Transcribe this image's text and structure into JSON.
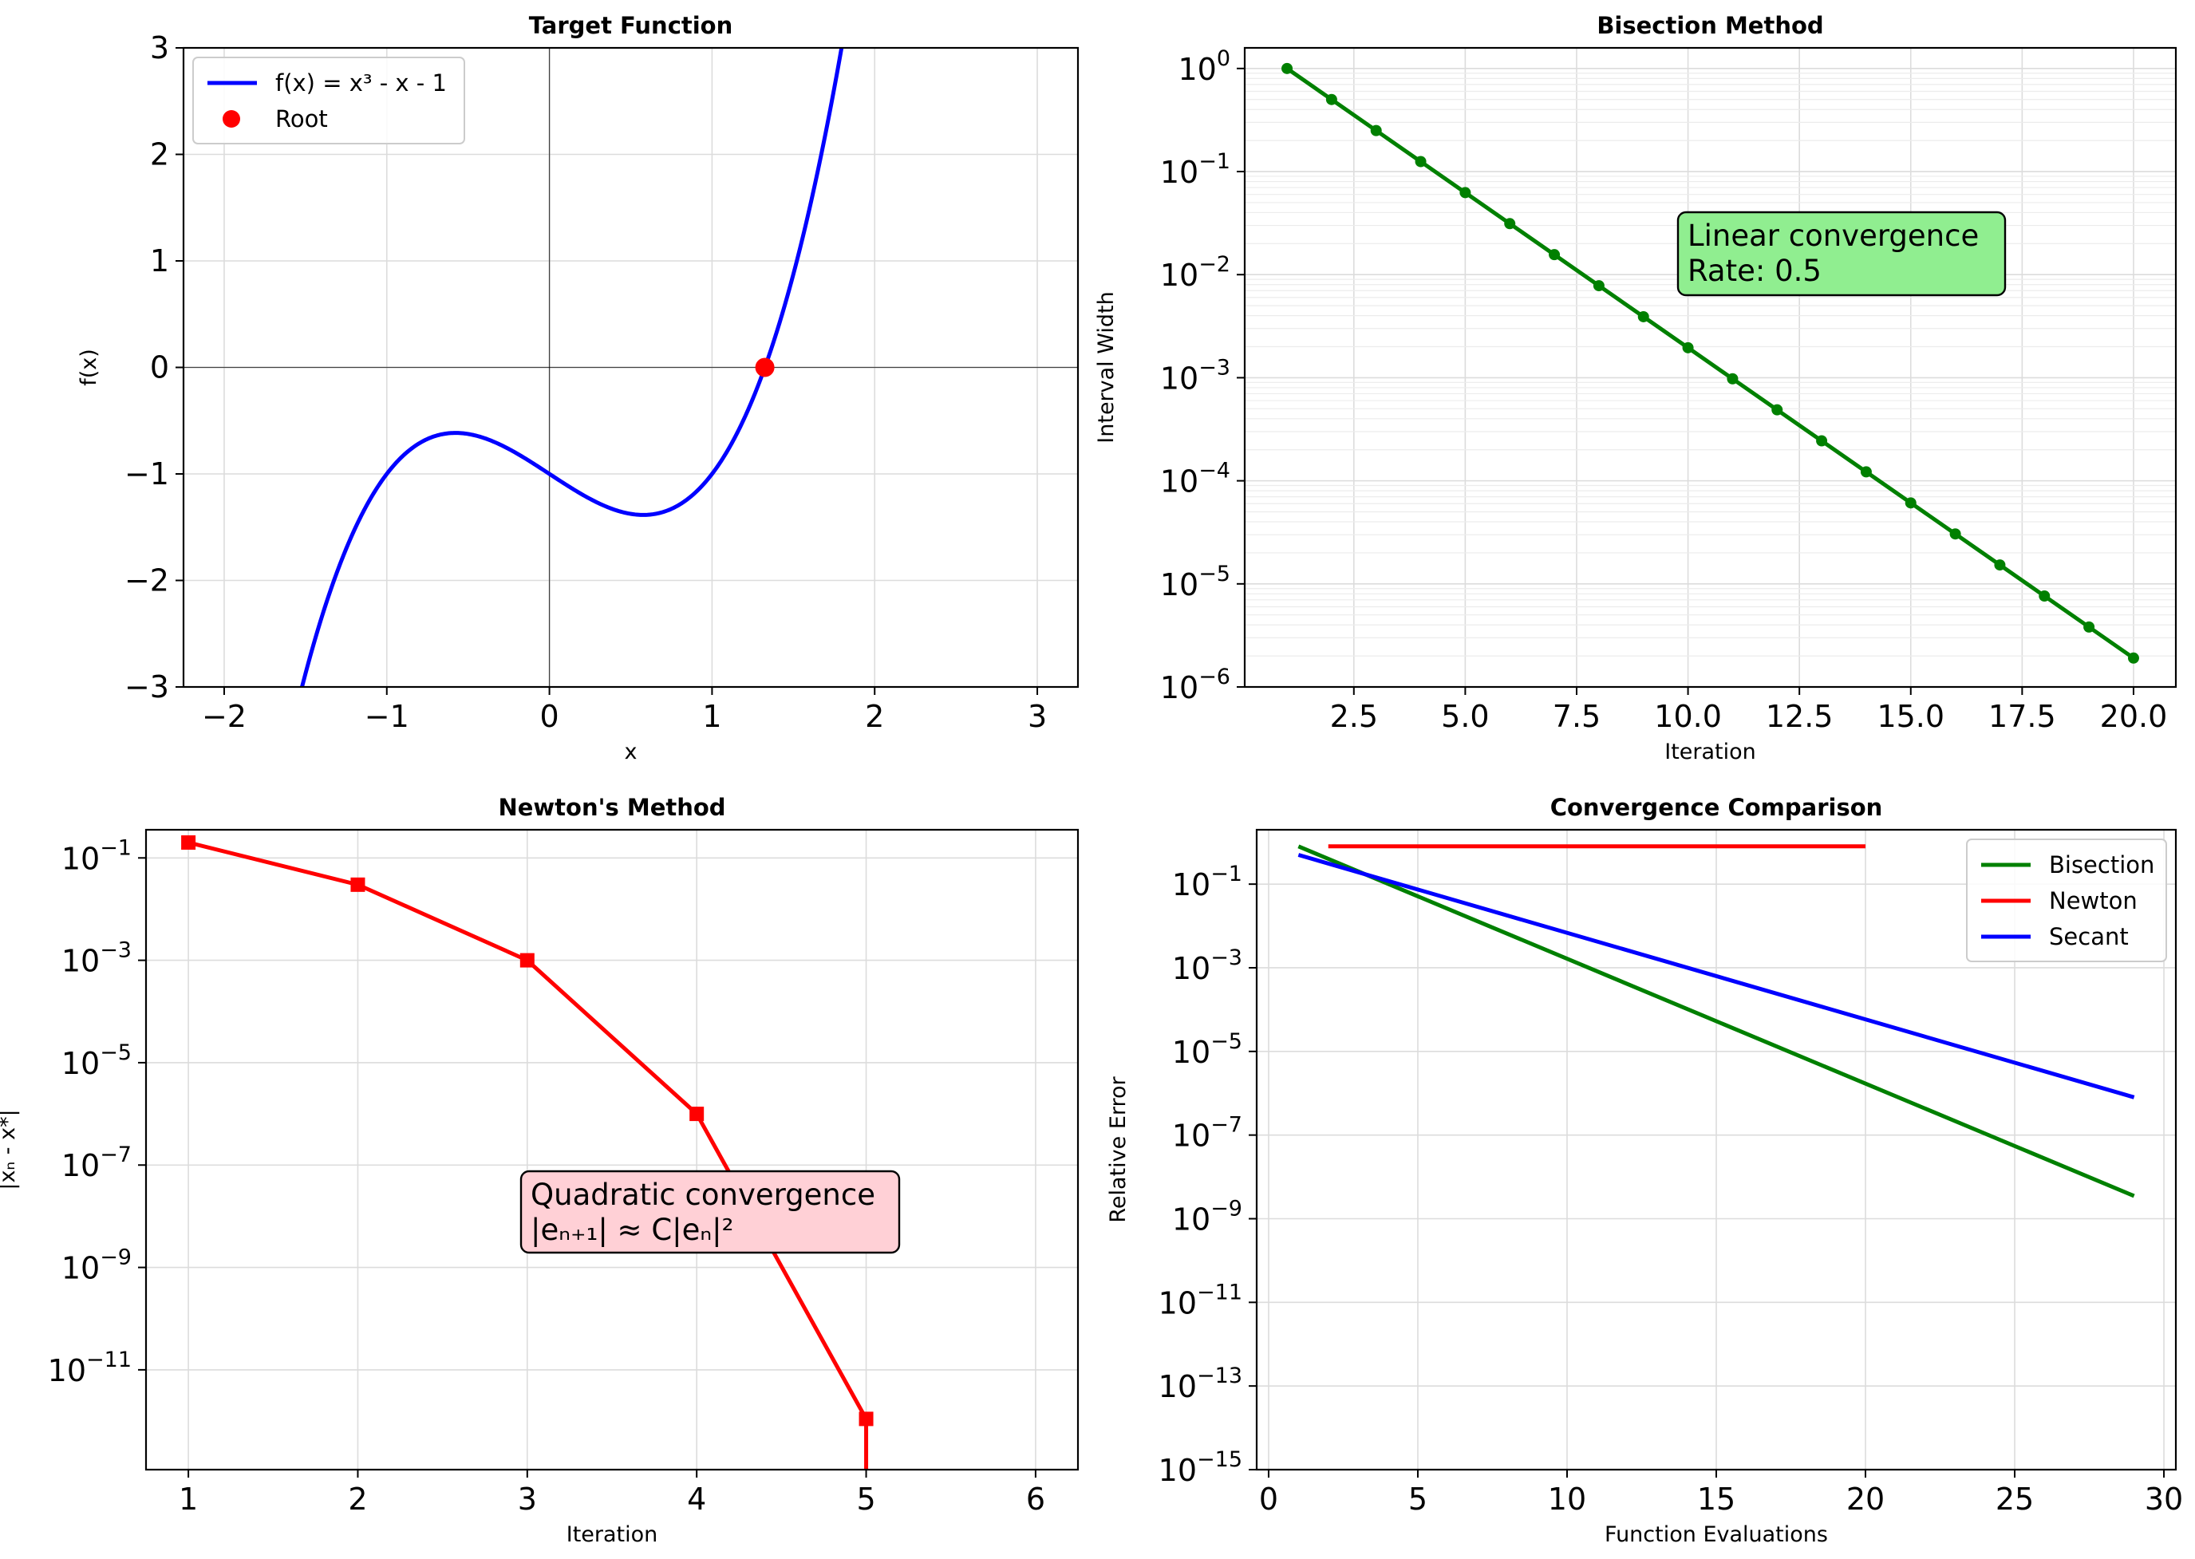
{
  "chart_data": [
    {
      "id": "target",
      "type": "line",
      "title": "Target Function",
      "xlabel": "x",
      "ylabel": "f(x)",
      "xlim": [
        -2.25,
        3.25
      ],
      "ylim": [
        -3,
        3
      ],
      "xticks": [
        -2,
        -1,
        0,
        1,
        2,
        3
      ],
      "xtick_labels": [
        "−2",
        "−1",
        "0",
        "1",
        "2",
        "3"
      ],
      "yticks": [
        -3,
        -2,
        -1,
        0,
        1,
        2,
        3
      ],
      "ytick_labels": [
        "−3",
        "−2",
        "−1",
        "0",
        "1",
        "2",
        "3"
      ],
      "grid": true,
      "function": "x^3 - x - 1",
      "series": [
        {
          "name": "f(x) = x³ - x - 1",
          "color": "#0000ff",
          "x_range": [
            -1.55,
            1.8
          ]
        }
      ],
      "root": {
        "name": "Root",
        "x": 1.3247,
        "y": 0,
        "color": "#ff0000"
      },
      "legend": [
        "f(x) = x³ - x - 1",
        "Root"
      ],
      "legend_position": "top-left"
    },
    {
      "id": "bisection",
      "type": "line",
      "title": "Bisection Method",
      "xlabel": "Iteration",
      "ylabel": "Interval Width",
      "yscale": "log",
      "xlim": [
        0.05,
        20.95
      ],
      "ylim_exp": [
        -6,
        0.2
      ],
      "xticks": [
        2.5,
        5.0,
        7.5,
        10.0,
        12.5,
        15.0,
        17.5,
        20.0
      ],
      "xtick_labels": [
        "2.5",
        "5.0",
        "7.5",
        "10.0",
        "12.5",
        "15.0",
        "17.5",
        "20.0"
      ],
      "ytick_exps": [
        0,
        -1,
        -2,
        -3,
        -4,
        -5,
        -6
      ],
      "ytick_labels": [
        "0",
        "−1",
        "−2",
        "−3",
        "−4",
        "−5",
        "−6"
      ],
      "grid": true,
      "series": [
        {
          "name": "Bisection",
          "color": "#008000",
          "x": [
            1,
            2,
            3,
            4,
            5,
            6,
            7,
            8,
            9,
            10,
            11,
            12,
            13,
            14,
            15,
            16,
            17,
            18,
            19,
            20
          ],
          "y": [
            1,
            0.5,
            0.25,
            0.125,
            0.0625,
            0.03125,
            0.015625,
            0.0078125,
            0.00390625,
            0.001953125,
            0.0009765625,
            0.00048828125,
            0.000244140625,
            0.0001220703125,
            6.103515625e-05,
            3.0517578125e-05,
            1.52587890625e-05,
            7.62939453125e-06,
            3.814697265625e-06,
            1.9073486328125e-06
          ]
        }
      ],
      "annotation": {
        "lines": [
          "Linear convergence",
          "Rate: 0.5"
        ],
        "color": "#90ee90"
      }
    },
    {
      "id": "newton",
      "type": "line",
      "title": "Newton's Method",
      "xlabel": "Iteration",
      "ylabel": "|xₙ - x*|",
      "yscale": "log",
      "xlim": [
        0.75,
        6.25
      ],
      "ylim_exp": [
        -12.95,
        -0.45
      ],
      "xticks": [
        1,
        2,
        3,
        4,
        5,
        6
      ],
      "xtick_labels": [
        "1",
        "2",
        "3",
        "4",
        "5",
        "6"
      ],
      "ytick_exps": [
        -1,
        -3,
        -5,
        -7,
        -9,
        -11
      ],
      "ytick_labels": [
        "−1",
        "−3",
        "−5",
        "−7",
        "−9",
        "−11"
      ],
      "grid": true,
      "series": [
        {
          "name": "Newton",
          "color": "#ff0000",
          "x": [
            1,
            2,
            3,
            4,
            5
          ],
          "y": [
            0.2,
            0.03,
            0.001,
            1e-06,
            1.1e-12
          ]
        }
      ],
      "annotation": {
        "lines": [
          "Quadratic convergence",
          "|eₙ₊₁| ≈ C|eₙ|²"
        ],
        "color": "#ffd0d6"
      }
    },
    {
      "id": "comparison",
      "type": "line",
      "title": "Convergence Comparison",
      "xlabel": "Function Evaluations",
      "ylabel": "Relative Error",
      "yscale": "log",
      "xlim": [
        -0.4,
        30.4
      ],
      "ylim_exp": [
        -15,
        0.3
      ],
      "xticks": [
        0,
        5,
        10,
        15,
        20,
        25,
        30
      ],
      "xtick_labels": [
        "0",
        "5",
        "10",
        "15",
        "20",
        "25",
        "30"
      ],
      "ytick_exps": [
        -1,
        -3,
        -5,
        -7,
        -9,
        -11,
        -13,
        -15
      ],
      "ytick_labels": [
        "−1",
        "−3",
        "−5",
        "−7",
        "−9",
        "−11",
        "−13",
        "−15"
      ],
      "grid": true,
      "series": [
        {
          "name": "Bisection",
          "color": "#008000",
          "x": [
            1,
            29
          ],
          "y": [
            0.8,
            3.5e-09
          ]
        },
        {
          "name": "Newton",
          "color": "#ff0000",
          "x": [
            2,
            20
          ],
          "y": [
            0.8,
            0.8
          ]
        },
        {
          "name": "Secant",
          "color": "#0000ff",
          "x": [
            1,
            29
          ],
          "y": [
            0.5,
            8e-07
          ]
        }
      ],
      "legend": [
        "Bisection",
        "Newton",
        "Secant"
      ],
      "legend_position": "top-right"
    }
  ]
}
